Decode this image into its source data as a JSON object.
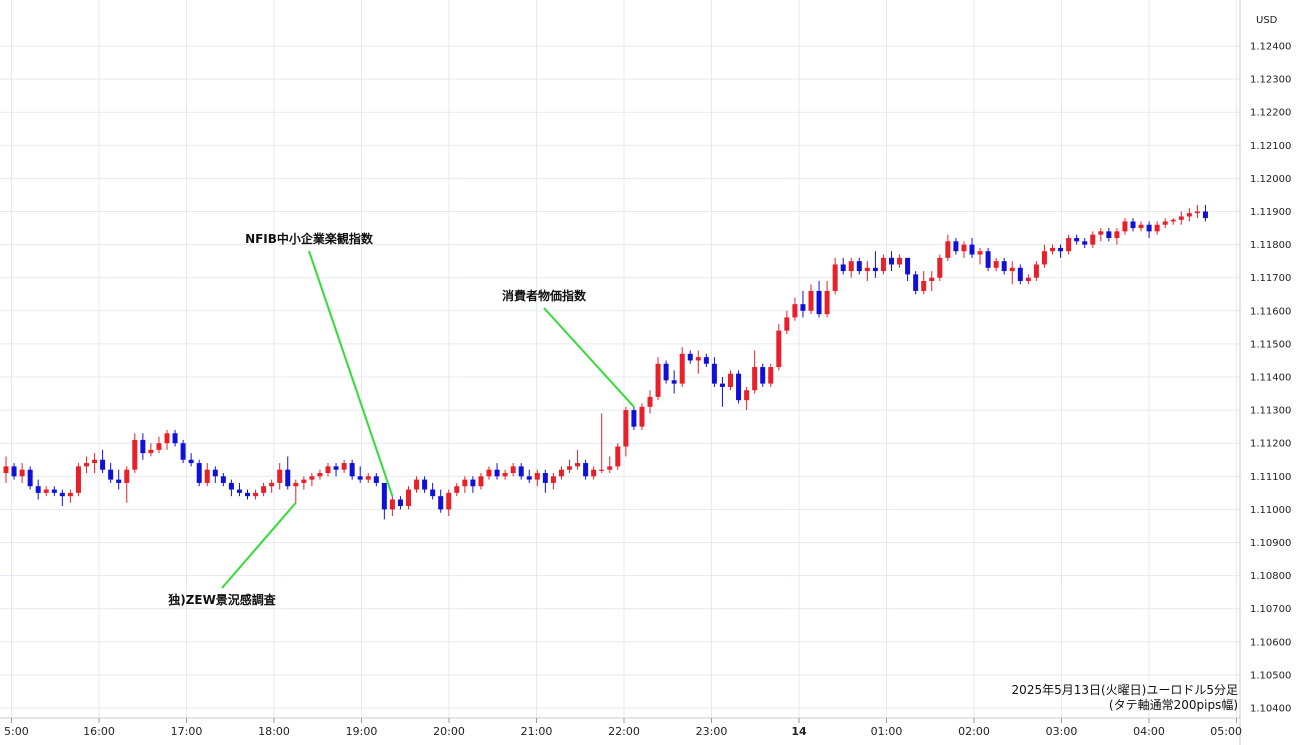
{
  "chart_data": {
    "type": "candlestick",
    "currency_label": "USD",
    "caption_line1": "2025年5月13日(火曜日)ユーロドル5分足",
    "caption_line2": "(タテ軸通常200pips幅)",
    "ylim": [
      1.10385,
      1.12475
    ],
    "y_ticks": [
      "1.12400",
      "1.12300",
      "1.12200",
      "1.12100",
      "1.12000",
      "1.11900",
      "1.11800",
      "1.11700",
      "1.11600",
      "1.11500",
      "1.11400",
      "1.11300",
      "1.11200",
      "1.11100",
      "1.11000",
      "1.10900",
      "1.10800",
      "1.10700",
      "1.10600",
      "1.10500",
      "1.10400"
    ],
    "x_ticks": [
      "5:00",
      "16:00",
      "17:00",
      "18:00",
      "19:00",
      "20:00",
      "21:00",
      "22:00",
      "23:00",
      "14",
      "01:00",
      "02:00",
      "03:00",
      "04:00",
      "05:00"
    ],
    "colors": {
      "up": "#e8202a",
      "down": "#1010d8",
      "grid": "#e4eaf0",
      "annotation_line": "#33dd33"
    },
    "annotations": [
      {
        "label": "NFIB中小企業楽観指数",
        "anchor_bar": 48
      },
      {
        "label": "消費者物価指数",
        "anchor_bar": 78
      },
      {
        "label": "独)ZEW景況感調査",
        "anchor_bar": 36
      }
    ],
    "candles": [
      [
        1.1111,
        1.1116,
        1.1108,
        1.1113
      ],
      [
        1.1113,
        1.1114,
        1.1109,
        1.111
      ],
      [
        1.111,
        1.1114,
        1.1108,
        1.1112
      ],
      [
        1.1112,
        1.1113,
        1.1106,
        1.1107
      ],
      [
        1.1107,
        1.1109,
        1.1103,
        1.1105
      ],
      [
        1.1105,
        1.1107,
        1.1104,
        1.1106
      ],
      [
        1.1106,
        1.1107,
        1.1104,
        1.1105
      ],
      [
        1.1105,
        1.1106,
        1.1101,
        1.1104
      ],
      [
        1.1104,
        1.1106,
        1.1102,
        1.1105
      ],
      [
        1.1105,
        1.1114,
        1.1104,
        1.1113
      ],
      [
        1.1113,
        1.1116,
        1.1111,
        1.1114
      ],
      [
        1.1114,
        1.1117,
        1.1111,
        1.1115
      ],
      [
        1.1115,
        1.1118,
        1.1111,
        1.1112
      ],
      [
        1.1112,
        1.1114,
        1.1108,
        1.1109
      ],
      [
        1.1109,
        1.1112,
        1.1106,
        1.1108
      ],
      [
        1.1108,
        1.1113,
        1.1102,
        1.1112
      ],
      [
        1.1112,
        1.1123,
        1.1111,
        1.1121
      ],
      [
        1.1121,
        1.1123,
        1.1115,
        1.1117
      ],
      [
        1.1117,
        1.112,
        1.1116,
        1.1118
      ],
      [
        1.1118,
        1.1122,
        1.1117,
        1.112
      ],
      [
        1.112,
        1.1124,
        1.1118,
        1.1123
      ],
      [
        1.1123,
        1.1124,
        1.1119,
        1.112
      ],
      [
        1.112,
        1.1121,
        1.1114,
        1.1115
      ],
      [
        1.1115,
        1.1117,
        1.1113,
        1.1114
      ],
      [
        1.1114,
        1.1115,
        1.1107,
        1.1108
      ],
      [
        1.1108,
        1.1114,
        1.1107,
        1.1112
      ],
      [
        1.1112,
        1.1113,
        1.1108,
        1.111
      ],
      [
        1.111,
        1.1111,
        1.1107,
        1.1108
      ],
      [
        1.1108,
        1.1109,
        1.1104,
        1.1106
      ],
      [
        1.1106,
        1.1108,
        1.1104,
        1.1105
      ],
      [
        1.1105,
        1.1106,
        1.1103,
        1.1104
      ],
      [
        1.1104,
        1.1106,
        1.1103,
        1.1105
      ],
      [
        1.1105,
        1.1108,
        1.1104,
        1.1107
      ],
      [
        1.1107,
        1.1109,
        1.1105,
        1.1108
      ],
      [
        1.1108,
        1.1114,
        1.1106,
        1.1112
      ],
      [
        1.1112,
        1.1116,
        1.1106,
        1.1107
      ],
      [
        1.1107,
        1.1109,
        1.1102,
        1.1108
      ],
      [
        1.1108,
        1.111,
        1.1106,
        1.1109
      ],
      [
        1.1109,
        1.1111,
        1.1107,
        1.111
      ],
      [
        1.111,
        1.1112,
        1.1109,
        1.1111
      ],
      [
        1.1111,
        1.1114,
        1.111,
        1.1113
      ],
      [
        1.1113,
        1.1114,
        1.111,
        1.1112
      ],
      [
        1.1112,
        1.1115,
        1.1111,
        1.1114
      ],
      [
        1.1114,
        1.1115,
        1.1109,
        1.111
      ],
      [
        1.111,
        1.1113,
        1.1108,
        1.1109
      ],
      [
        1.1109,
        1.1111,
        1.1108,
        1.111
      ],
      [
        1.111,
        1.1111,
        1.1107,
        1.1108
      ],
      [
        1.1108,
        1.1108,
        1.1097,
        1.11
      ],
      [
        1.11,
        1.1104,
        1.1098,
        1.1103
      ],
      [
        1.1103,
        1.1104,
        1.11,
        1.1101
      ],
      [
        1.1101,
        1.1107,
        1.11,
        1.1106
      ],
      [
        1.1106,
        1.111,
        1.1105,
        1.1109
      ],
      [
        1.1109,
        1.111,
        1.1105,
        1.1106
      ],
      [
        1.1106,
        1.1108,
        1.1103,
        1.1104
      ],
      [
        1.1104,
        1.1106,
        1.1099,
        1.11
      ],
      [
        1.11,
        1.1106,
        1.1098,
        1.1105
      ],
      [
        1.1105,
        1.1108,
        1.1104,
        1.1107
      ],
      [
        1.1107,
        1.111,
        1.1105,
        1.1109
      ],
      [
        1.1109,
        1.111,
        1.1105,
        1.1107
      ],
      [
        1.1107,
        1.1111,
        1.1106,
        1.111
      ],
      [
        1.111,
        1.1113,
        1.1109,
        1.1112
      ],
      [
        1.1112,
        1.1114,
        1.1109,
        1.111
      ],
      [
        1.111,
        1.1112,
        1.1109,
        1.1111
      ],
      [
        1.1111,
        1.1114,
        1.111,
        1.1113
      ],
      [
        1.1113,
        1.1114,
        1.1109,
        1.111
      ],
      [
        1.111,
        1.1112,
        1.1108,
        1.1109
      ],
      [
        1.1109,
        1.1112,
        1.1107,
        1.1111
      ],
      [
        1.1111,
        1.1112,
        1.1105,
        1.1108
      ],
      [
        1.1108,
        1.1111,
        1.1106,
        1.111
      ],
      [
        1.111,
        1.1113,
        1.1109,
        1.1112
      ],
      [
        1.1112,
        1.1115,
        1.1111,
        1.1113
      ],
      [
        1.1113,
        1.1118,
        1.1112,
        1.1114
      ],
      [
        1.1114,
        1.1115,
        1.1109,
        1.111
      ],
      [
        1.111,
        1.1113,
        1.1109,
        1.1112
      ],
      [
        1.1112,
        1.1129,
        1.1111,
        1.1112
      ],
      [
        1.1112,
        1.1116,
        1.1111,
        1.1113
      ],
      [
        1.1113,
        1.112,
        1.1112,
        1.1119
      ],
      [
        1.1119,
        1.1131,
        1.1116,
        1.113
      ],
      [
        1.113,
        1.1131,
        1.1124,
        1.1125
      ],
      [
        1.1125,
        1.1132,
        1.1124,
        1.1131
      ],
      [
        1.1131,
        1.1136,
        1.1129,
        1.1134
      ],
      [
        1.1134,
        1.1146,
        1.1133,
        1.1144
      ],
      [
        1.1144,
        1.1145,
        1.1138,
        1.1139
      ],
      [
        1.1139,
        1.1142,
        1.1135,
        1.1138
      ],
      [
        1.1138,
        1.1149,
        1.1137,
        1.1147
      ],
      [
        1.1147,
        1.1148,
        1.1144,
        1.1145
      ],
      [
        1.1145,
        1.1148,
        1.1141,
        1.1146
      ],
      [
        1.1146,
        1.1147,
        1.1143,
        1.1144
      ],
      [
        1.1144,
        1.1146,
        1.1137,
        1.1138
      ],
      [
        1.1138,
        1.114,
        1.1131,
        1.1137
      ],
      [
        1.1137,
        1.1142,
        1.1136,
        1.1141
      ],
      [
        1.1141,
        1.1142,
        1.1132,
        1.1133
      ],
      [
        1.1133,
        1.1137,
        1.113,
        1.1136
      ],
      [
        1.1136,
        1.1148,
        1.1135,
        1.1143
      ],
      [
        1.1143,
        1.1144,
        1.1137,
        1.1138
      ],
      [
        1.1138,
        1.1144,
        1.1137,
        1.1143
      ],
      [
        1.1143,
        1.1156,
        1.1142,
        1.1154
      ],
      [
        1.1154,
        1.116,
        1.1153,
        1.1158
      ],
      [
        1.1158,
        1.1164,
        1.1157,
        1.1162
      ],
      [
        1.1162,
        1.1166,
        1.1158,
        1.116
      ],
      [
        1.116,
        1.1168,
        1.1159,
        1.1166
      ],
      [
        1.1166,
        1.1169,
        1.1158,
        1.1159
      ],
      [
        1.1159,
        1.1169,
        1.1158,
        1.1166
      ],
      [
        1.1166,
        1.1176,
        1.1165,
        1.1174
      ],
      [
        1.1174,
        1.1176,
        1.1171,
        1.1172
      ],
      [
        1.1172,
        1.1176,
        1.117,
        1.1175
      ],
      [
        1.1175,
        1.1176,
        1.1171,
        1.1172
      ],
      [
        1.1172,
        1.1175,
        1.1169,
        1.1173
      ],
      [
        1.1173,
        1.1178,
        1.117,
        1.1172
      ],
      [
        1.1172,
        1.1177,
        1.1171,
        1.1176
      ],
      [
        1.1176,
        1.1178,
        1.1172,
        1.1174
      ],
      [
        1.1174,
        1.1177,
        1.1173,
        1.1176
      ],
      [
        1.1176,
        1.1176,
        1.1169,
        1.1171
      ],
      [
        1.1171,
        1.1172,
        1.1165,
        1.1166
      ],
      [
        1.1166,
        1.1172,
        1.1165,
        1.1169
      ],
      [
        1.1169,
        1.1172,
        1.1166,
        1.117
      ],
      [
        1.117,
        1.1177,
        1.1169,
        1.1176
      ],
      [
        1.1176,
        1.1183,
        1.1175,
        1.1181
      ],
      [
        1.1181,
        1.1182,
        1.1177,
        1.1178
      ],
      [
        1.1178,
        1.1181,
        1.1176,
        1.118
      ],
      [
        1.118,
        1.1182,
        1.1176,
        1.1177
      ],
      [
        1.1177,
        1.1179,
        1.1174,
        1.1178
      ],
      [
        1.1178,
        1.1179,
        1.1172,
        1.1173
      ],
      [
        1.1173,
        1.1176,
        1.1172,
        1.1175
      ],
      [
        1.1175,
        1.1176,
        1.1171,
        1.1172
      ],
      [
        1.1172,
        1.1175,
        1.1168,
        1.1173
      ],
      [
        1.1173,
        1.1174,
        1.1168,
        1.1169
      ],
      [
        1.1169,
        1.1171,
        1.1168,
        1.117
      ],
      [
        1.117,
        1.1175,
        1.1169,
        1.1174
      ],
      [
        1.1174,
        1.118,
        1.1173,
        1.1178
      ],
      [
        1.1178,
        1.118,
        1.1177,
        1.1179
      ],
      [
        1.1179,
        1.118,
        1.1176,
        1.1178
      ],
      [
        1.1178,
        1.1183,
        1.1177,
        1.1182
      ],
      [
        1.1182,
        1.1183,
        1.118,
        1.1181
      ],
      [
        1.1181,
        1.1182,
        1.1179,
        1.118
      ],
      [
        1.118,
        1.1184,
        1.1179,
        1.1183
      ],
      [
        1.1183,
        1.1185,
        1.1181,
        1.1184
      ],
      [
        1.1184,
        1.1185,
        1.1181,
        1.1182
      ],
      [
        1.1182,
        1.1185,
        1.118,
        1.1184
      ],
      [
        1.1184,
        1.1188,
        1.1183,
        1.1187
      ],
      [
        1.1187,
        1.1188,
        1.1184,
        1.1185
      ],
      [
        1.1185,
        1.1187,
        1.1184,
        1.1186
      ],
      [
        1.1186,
        1.1187,
        1.1182,
        1.1184
      ],
      [
        1.1184,
        1.1187,
        1.1183,
        1.1186
      ],
      [
        1.1186,
        1.1188,
        1.1185,
        1.1187
      ],
      [
        1.1187,
        1.1188,
        1.1186,
        1.11875
      ],
      [
        1.11875,
        1.119,
        1.1186,
        1.11885
      ],
      [
        1.11885,
        1.1191,
        1.1187,
        1.11895
      ],
      [
        1.11895,
        1.1192,
        1.1188,
        1.119
      ],
      [
        1.119,
        1.1192,
        1.1187,
        1.1188
      ]
    ]
  }
}
